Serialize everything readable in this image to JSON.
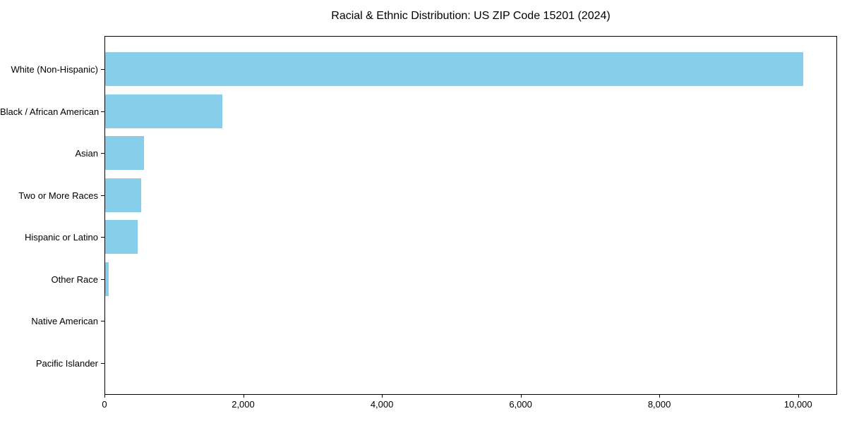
{
  "colors": {
    "bar": "#87CEEB",
    "axis": "#000000",
    "text": "#000000",
    "background": "#ffffff"
  },
  "chart_data": {
    "type": "bar",
    "orientation": "horizontal",
    "title": "Racial & Ethnic Distribution: US ZIP Code 15201 (2024)",
    "xlabel": "",
    "ylabel": "",
    "categories": [
      "White (Non-Hispanic)",
      "Black / African American",
      "Asian",
      "Two or More Races",
      "Hispanic or Latino",
      "Other Race",
      "Native American",
      "Pacific Islander"
    ],
    "values": [
      10060,
      1690,
      560,
      520,
      470,
      50,
      0,
      0
    ],
    "bar_color": "#87CEEB",
    "xlim": [
      0,
      10563
    ],
    "x_ticks": [
      0,
      2000,
      4000,
      6000,
      8000,
      10000
    ],
    "x_tick_labels": [
      "0",
      "2,000",
      "4,000",
      "6,000",
      "8,000",
      "10,000"
    ],
    "grid": false,
    "legend": null
  }
}
